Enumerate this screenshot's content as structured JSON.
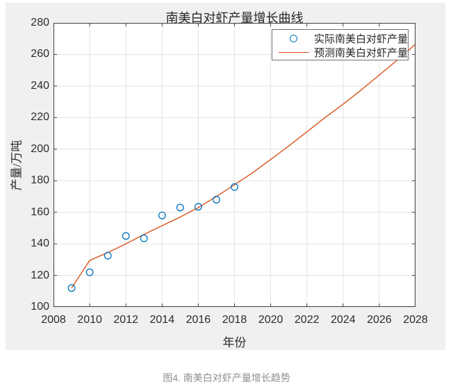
{
  "caption": "图4. 南美白对虾产量增长趋势",
  "chart_data": {
    "type": "scatter+line",
    "title": "南美白对虾产量增长曲线",
    "xlabel": "年份",
    "ylabel": "产量/万吨",
    "xlim": [
      2008,
      2028
    ],
    "ylim": [
      100,
      280
    ],
    "x_ticks": [
      2008,
      2010,
      2012,
      2014,
      2016,
      2018,
      2020,
      2022,
      2024,
      2026,
      2028
    ],
    "y_ticks": [
      100,
      120,
      140,
      160,
      180,
      200,
      220,
      240,
      260,
      280
    ],
    "grid": true,
    "legend_position": "top-right",
    "series": [
      {
        "name": "实际南美白对虾产量",
        "type": "scatter",
        "marker": "circle",
        "color": "#0072BD",
        "x": [
          2009,
          2010,
          2011,
          2012,
          2013,
          2014,
          2015,
          2016,
          2017,
          2018
        ],
        "y": [
          112,
          122,
          132.5,
          145,
          143.5,
          158,
          163,
          163.5,
          168,
          176
        ]
      },
      {
        "name": "预测南美白对虾产量",
        "type": "line",
        "color": "#D95319",
        "x": [
          2009,
          2010,
          2011,
          2012,
          2013,
          2014,
          2015,
          2016,
          2017,
          2018,
          2019,
          2020,
          2021,
          2022,
          2023,
          2024,
          2025,
          2026,
          2027,
          2028
        ],
        "y": [
          112,
          129.5,
          134.5,
          140,
          146,
          151.5,
          157,
          163,
          170,
          177.5,
          185,
          193.5,
          202,
          211,
          220,
          228.5,
          237.5,
          247,
          256.5,
          266.5
        ]
      }
    ]
  }
}
